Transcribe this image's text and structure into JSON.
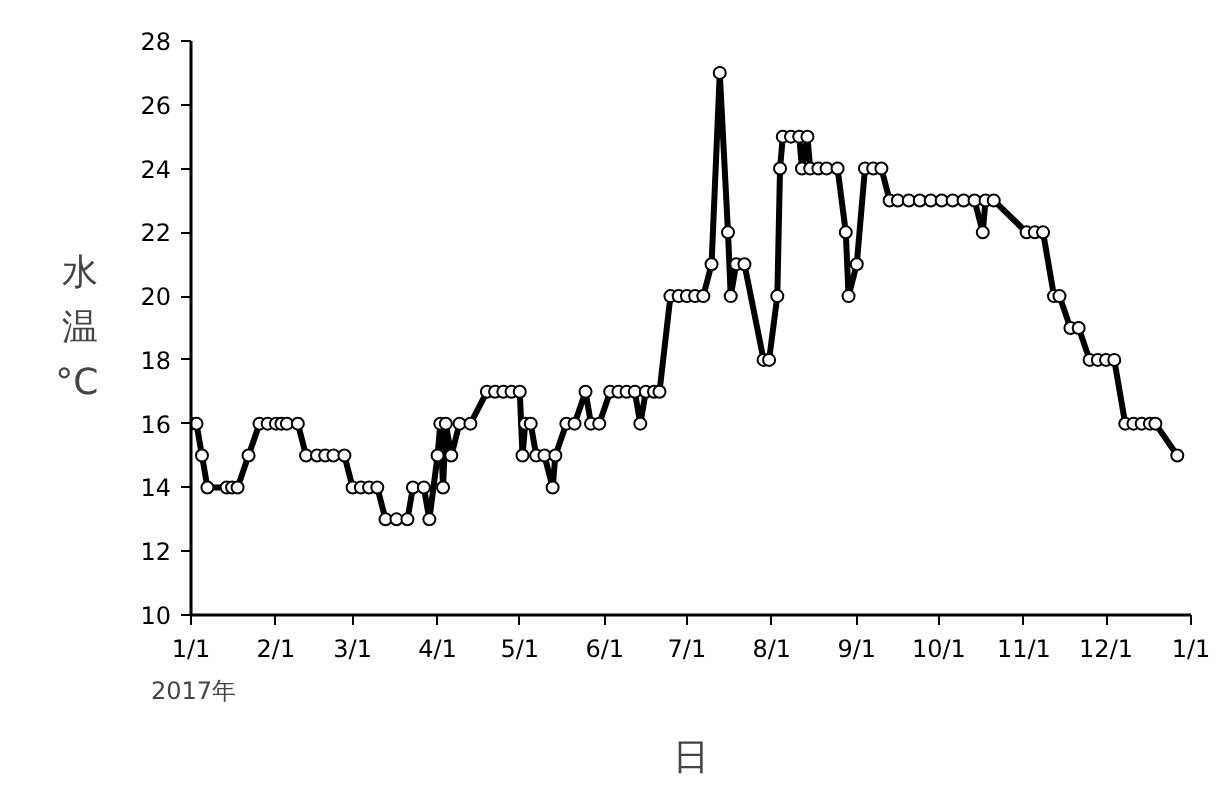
{
  "chart_data": {
    "type": "line",
    "xlabel": "日",
    "ylabel": "水温°C",
    "annotations": [
      "2017年"
    ],
    "x": [
      "2017-01-01",
      "2017-01-03",
      "2017-01-05",
      "2017-01-07",
      "2017-01-14",
      "2017-01-16",
      "2017-01-18",
      "2017-01-22",
      "2017-01-26",
      "2017-01-29",
      "2017-02-01",
      "2017-02-03",
      "2017-02-05",
      "2017-02-09",
      "2017-02-12",
      "2017-02-16",
      "2017-02-19",
      "2017-02-22",
      "2017-02-26",
      "2017-03-01",
      "2017-03-04",
      "2017-03-07",
      "2017-03-10",
      "2017-03-13",
      "2017-03-17",
      "2017-03-21",
      "2017-03-23",
      "2017-03-27",
      "2017-03-29",
      "2017-04-01",
      "2017-04-02",
      "2017-04-03",
      "2017-04-04",
      "2017-04-06",
      "2017-04-09",
      "2017-04-13",
      "2017-04-19",
      "2017-04-22",
      "2017-04-25",
      "2017-04-28",
      "2017-05-01",
      "2017-05-02",
      "2017-05-03",
      "2017-05-05",
      "2017-05-07",
      "2017-05-10",
      "2017-05-13",
      "2017-05-14",
      "2017-05-18",
      "2017-05-21",
      "2017-05-25",
      "2017-05-27",
      "2017-05-30",
      "2017-06-03",
      "2017-06-06",
      "2017-06-09",
      "2017-06-12",
      "2017-06-14",
      "2017-06-16",
      "2017-06-19",
      "2017-06-21",
      "2017-06-25",
      "2017-06-28",
      "2017-07-01",
      "2017-07-04",
      "2017-07-07",
      "2017-07-10",
      "2017-07-13",
      "2017-07-16",
      "2017-07-17",
      "2017-07-19",
      "2017-07-22",
      "2017-07-29",
      "2017-07-31",
      "2017-08-03",
      "2017-08-04",
      "2017-08-05",
      "2017-08-08",
      "2017-08-11",
      "2017-08-12",
      "2017-08-14",
      "2017-08-15",
      "2017-08-18",
      "2017-08-21",
      "2017-08-25",
      "2017-08-28",
      "2017-08-29",
      "2017-09-01",
      "2017-09-04",
      "2017-09-07",
      "2017-09-10",
      "2017-09-13",
      "2017-09-16",
      "2017-09-20",
      "2017-09-24",
      "2017-09-28",
      "2017-10-02",
      "2017-10-06",
      "2017-10-10",
      "2017-10-14",
      "2017-10-17",
      "2017-10-18",
      "2017-10-21",
      "2017-11-02",
      "2017-11-05",
      "2017-11-08",
      "2017-11-12",
      "2017-11-14",
      "2017-11-18",
      "2017-11-21",
      "2017-11-25",
      "2017-11-28",
      "2017-12-01",
      "2017-12-04",
      "2017-12-08",
      "2017-12-11",
      "2017-12-14",
      "2017-12-17",
      "2017-12-19",
      "2017-12-27"
    ],
    "values": [
      16,
      16,
      15,
      14,
      14,
      14,
      14,
      15,
      16,
      16,
      16,
      16,
      16,
      16,
      15,
      15,
      15,
      15,
      15,
      14,
      14,
      14,
      14,
      13,
      13,
      13,
      14,
      14,
      13,
      15,
      16,
      14,
      16,
      15,
      16,
      16,
      17,
      17,
      17,
      17,
      17,
      15,
      16,
      16,
      15,
      15,
      14,
      15,
      16,
      16,
      17,
      16,
      16,
      17,
      17,
      17,
      17,
      16,
      17,
      17,
      17,
      20,
      20,
      20,
      20,
      20,
      21,
      27,
      22,
      20,
      21,
      21,
      18,
      18,
      20,
      24,
      25,
      25,
      25,
      24,
      25,
      24,
      24,
      24,
      24,
      22,
      20,
      21,
      24,
      24,
      24,
      23,
      23,
      23,
      23,
      23,
      23,
      23,
      23,
      23,
      22,
      23,
      23,
      22,
      22,
      22,
      20,
      20,
      19,
      19,
      18,
      18,
      18,
      18,
      16,
      16,
      16,
      16,
      16,
      15
    ],
    "color": "#000000",
    "marker": "circle",
    "line_style": "solid",
    "grid": false,
    "xlim": [
      "2017-01-01",
      "2018-01-01"
    ],
    "xticks": [
      {
        "value": "2017-01-01",
        "label": "1/1"
      },
      {
        "value": "2017-02-01",
        "label": "2/1"
      },
      {
        "value": "2017-03-01",
        "label": "3/1"
      },
      {
        "value": "2017-04-01",
        "label": "4/1"
      },
      {
        "value": "2017-05-01",
        "label": "5/1"
      },
      {
        "value": "2017-06-01",
        "label": "6/1"
      },
      {
        "value": "2017-07-01",
        "label": "7/1"
      },
      {
        "value": "2017-08-01",
        "label": "8/1"
      },
      {
        "value": "2017-09-01",
        "label": "9/1"
      },
      {
        "value": "2017-10-01",
        "label": "10/1"
      },
      {
        "value": "2017-11-01",
        "label": "11/1"
      },
      {
        "value": "2017-12-01",
        "label": "12/1"
      },
      {
        "value": "2018-01-01",
        "label": "1/1"
      }
    ],
    "ylim": [
      10,
      28
    ],
    "yticks": [
      10,
      12,
      14,
      16,
      18,
      20,
      22,
      24,
      26,
      28
    ]
  }
}
